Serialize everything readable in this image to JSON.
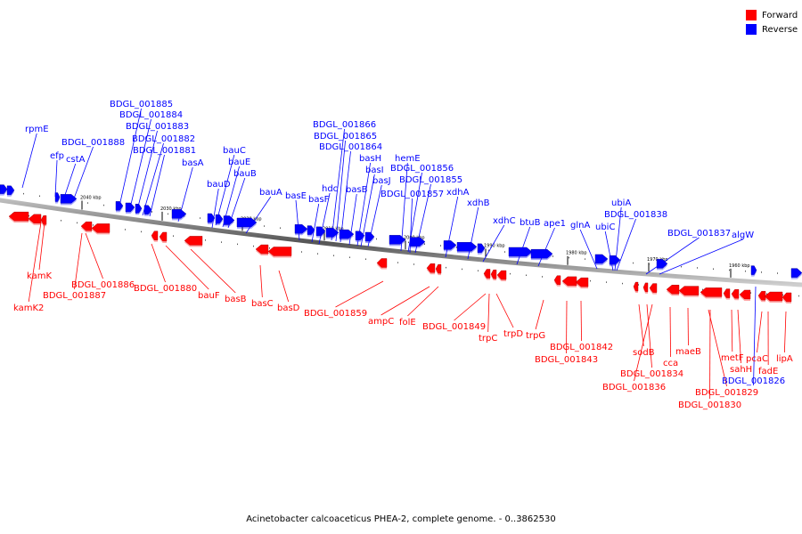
{
  "legend": {
    "forward_label": "Forward",
    "reverse_label": "Reverse",
    "forward_color": "#ff0000",
    "reverse_color": "#0000ff"
  },
  "caption": "Acinetobacter calcoaceticus PHEA-2, complete genome. - 0..3862530",
  "axis": {
    "ticks": [
      "2040 kbp",
      "2030 kbp",
      "2020 kbp",
      "2010 kbp",
      "2000 kbp",
      "1990 kbp",
      "1980 kbp",
      "1970 kbp",
      "1960 kbp"
    ]
  },
  "genes": {
    "reverse": [
      "rpmE",
      "efp",
      "cstA",
      "BDGL_001888",
      "BDGL_001885",
      "BDGL_001884",
      "BDGL_001883",
      "BDGL_001882",
      "BDGL_001881",
      "basA",
      "bauC",
      "bauE",
      "bauB",
      "bauD",
      "bauA",
      "basE",
      "basF",
      "hdc",
      "BDGL_001866",
      "BDGL_001865",
      "BDGL_001864",
      "basB",
      "basH",
      "basI",
      "basJ",
      "hemE",
      "BDGL_001856",
      "BDGL_001855",
      "BDGL_001857",
      "xdhA",
      "xdhB",
      "xdhC",
      "btuB",
      "ape1",
      "glnA",
      "ubiC",
      "ubiA",
      "BDGL_001838",
      "BDGL_001837",
      "algW",
      "BDGL_001826"
    ],
    "forward": [
      "kamK",
      "kamK2",
      "BDGL_001886",
      "BDGL_001887",
      "BDGL_001880",
      "bauF",
      "basB",
      "basC",
      "basD",
      "BDGL_001859",
      "ampC",
      "folE",
      "BDGL_001849",
      "trpC",
      "trpD",
      "trpG",
      "BDGL_001842",
      "BDGL_001843",
      "sodB",
      "BDGL_001834",
      "BDGL_001836",
      "cca",
      "maeB",
      "metF",
      "sahH",
      "BDGL_001829",
      "BDGL_001830",
      "pcaC",
      "fadE",
      "lipA"
    ]
  }
}
